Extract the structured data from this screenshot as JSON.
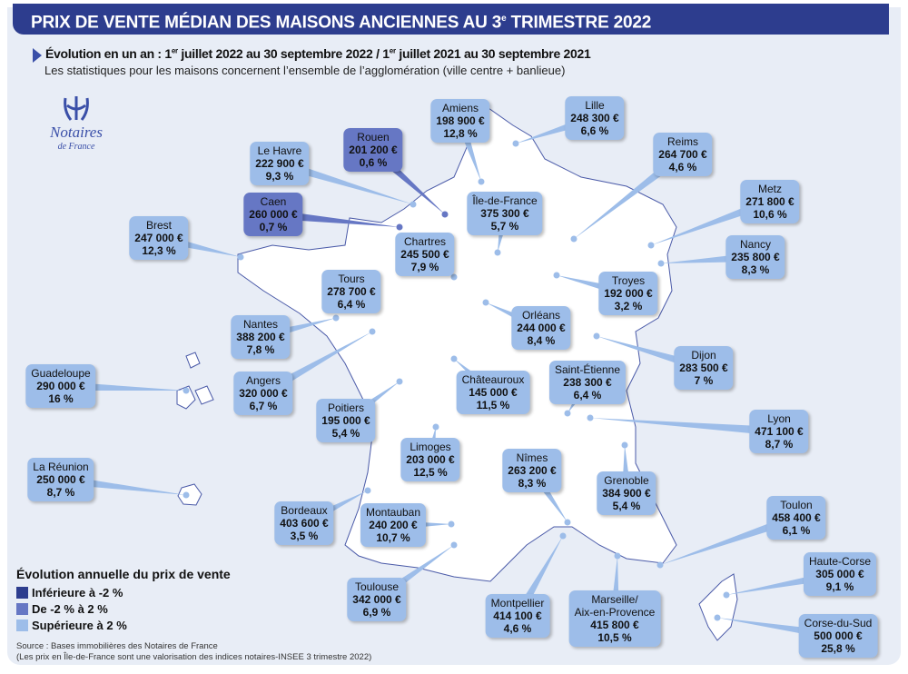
{
  "header": {
    "title_main": "PRIX DE VENTE MÉDIAN DES MAISONS ANCIENNES AU 3",
    "title_sup": "e",
    "title_end": " TRIMESTRE 2022"
  },
  "subtitle": {
    "part1": "Évolution en un an : 1",
    "sup1": "er",
    "part2": " juillet 2022 au 30 septembre 2022 / 1",
    "sup2": "er",
    "part3": " juillet 2021 au 30 septembre 2021",
    "note": "Les statistiques pour les maisons concernent l’ensemble de l’agglomération (ville centre + banlieue)"
  },
  "logo": {
    "name": "Notaires",
    "sub": "de France"
  },
  "colors": {
    "low": "#2d3d8e",
    "mid": "#6677c4",
    "high": "#9dbde9",
    "title_bg": "#2d3d8e",
    "land": "#ffffff",
    "background": "#e8edf6"
  },
  "legend": {
    "title": "Évolution annuelle du prix de vente",
    "items": [
      {
        "label": "Inférieure à -2 %",
        "category": "low"
      },
      {
        "label": "De -2 % à 2 %",
        "category": "mid"
      },
      {
        "label": "Supérieure à 2 %",
        "category": "high"
      }
    ]
  },
  "source": {
    "line1": "Source : Bases immobilières des Notaires de France",
    "line2": "(Les prix en Île-de-France sont une valorisation des indices notaires-INSEE 3 trimestre 2022)"
  },
  "cities": [
    {
      "name": "Amiens",
      "price": "198 900 €",
      "change": "12,8 %",
      "category": "high"
    },
    {
      "name": "Lille",
      "price": "248 300 €",
      "change": "6,6 %",
      "category": "high"
    },
    {
      "name": "Rouen",
      "price": "201 200 €",
      "change": "0,6 %",
      "category": "mid"
    },
    {
      "name": "Le Havre",
      "price": "222 900 €",
      "change": "9,3 %",
      "category": "high"
    },
    {
      "name": "Reims",
      "price": "264 700 €",
      "change": "4,6 %",
      "category": "high"
    },
    {
      "name": "Île-de-France",
      "price": "375 300 €",
      "change": "5,7 %",
      "category": "high"
    },
    {
      "name": "Metz",
      "price": "271 800 €",
      "change": "10,6 %",
      "category": "high"
    },
    {
      "name": "Caen",
      "price": "260 000 €",
      "change": "0,7 %",
      "category": "mid"
    },
    {
      "name": "Brest",
      "price": "247 000 €",
      "change": "12,3 %",
      "category": "high"
    },
    {
      "name": "Chartres",
      "price": "245 500 €",
      "change": "7,9 %",
      "category": "high"
    },
    {
      "name": "Nancy",
      "price": "235 800 €",
      "change": "8,3 %",
      "category": "high"
    },
    {
      "name": "Troyes",
      "price": "192 000 €",
      "change": "3,2 %",
      "category": "high"
    },
    {
      "name": "Tours",
      "price": "278 700 €",
      "change": "6,4 %",
      "category": "high"
    },
    {
      "name": "Orléans",
      "price": "244 000 €",
      "change": "8,4 %",
      "category": "high"
    },
    {
      "name": "Nantes",
      "price": "388 200 €",
      "change": "7,8 %",
      "category": "high"
    },
    {
      "name": "Dijon",
      "price": "283 500 €",
      "change": "7 %",
      "category": "high"
    },
    {
      "name": "Angers",
      "price": "320 000 €",
      "change": "6,7 %",
      "category": "high"
    },
    {
      "name": "Châteauroux",
      "price": "145 000 €",
      "change": "11,5 %",
      "category": "high"
    },
    {
      "name": "Saint-Étienne",
      "price": "238 300 €",
      "change": "6,4 %",
      "category": "high"
    },
    {
      "name": "Guadeloupe",
      "price": "290 000 €",
      "change": "16 %",
      "category": "high"
    },
    {
      "name": "Poitiers",
      "price": "195 000 €",
      "change": "5,4 %",
      "category": "high"
    },
    {
      "name": "Lyon",
      "price": "471 100 €",
      "change": "8,7 %",
      "category": "high"
    },
    {
      "name": "La Réunion",
      "price": "250 000 €",
      "change": "8,7 %",
      "category": "high"
    },
    {
      "name": "Limoges",
      "price": "203 000 €",
      "change": "12,5 %",
      "category": "high"
    },
    {
      "name": "Nîmes",
      "price": "263 200 €",
      "change": "8,3 %",
      "category": "high"
    },
    {
      "name": "Grenoble",
      "price": "384 900 €",
      "change": "5,4 %",
      "category": "high"
    },
    {
      "name": "Bordeaux",
      "price": "403 600 €",
      "change": "3,5 %",
      "category": "high"
    },
    {
      "name": "Montauban",
      "price": "240 200 €",
      "change": "10,7 %",
      "category": "high"
    },
    {
      "name": "Toulon",
      "price": "458 400 €",
      "change": "6,1 %",
      "category": "high"
    },
    {
      "name": "Marseille/\nAix-en-Provence",
      "price": "415 800 €",
      "change": "10,5 %",
      "category": "high"
    },
    {
      "name": "Haute-Corse",
      "price": "305 000 €",
      "change": "9,1 %",
      "category": "high"
    },
    {
      "name": "Toulouse",
      "price": "342 000 €",
      "change": "6,9 %",
      "category": "high"
    },
    {
      "name": "Montpellier",
      "price": "414 100 €",
      "change": "4,6 %",
      "category": "high"
    },
    {
      "name": "Corse-du-Sud",
      "price": "500 000 €",
      "change": "25,8 %",
      "category": "high"
    }
  ]
}
